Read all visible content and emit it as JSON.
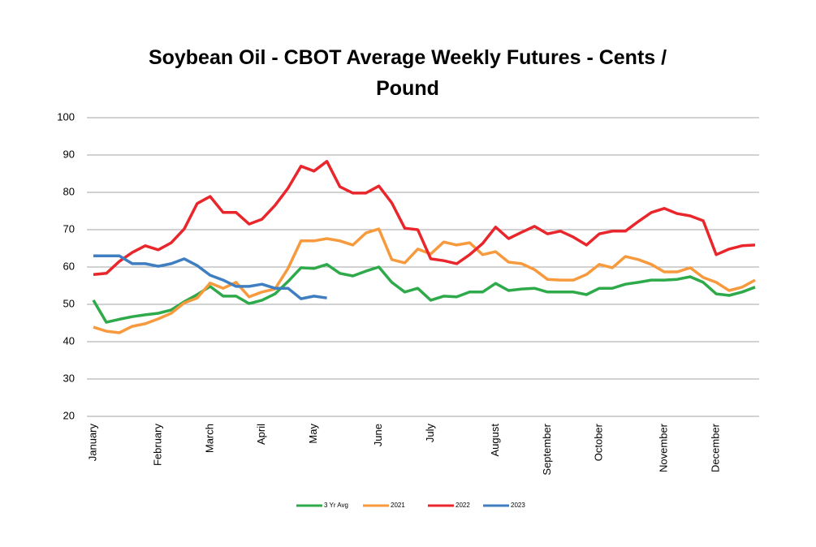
{
  "chart_data": {
    "type": "line",
    "title": "Soybean Oil - CBOT Average Weekly Futures - Cents / Pound",
    "categories": [
      "January",
      null,
      null,
      null,
      null,
      "February",
      null,
      null,
      null,
      "March",
      null,
      null,
      null,
      "April",
      null,
      null,
      null,
      "May",
      null,
      null,
      null,
      null,
      "June",
      null,
      null,
      null,
      "July",
      null,
      null,
      null,
      null,
      "August",
      null,
      null,
      null,
      "September",
      null,
      null,
      null,
      "October",
      null,
      null,
      null,
      null,
      "November",
      null,
      null,
      null,
      "December",
      null,
      null,
      null
    ],
    "series": [
      {
        "name": "3 Yr Avg",
        "color": "#2eaa4a",
        "values": [
          51.1,
          45.2,
          46,
          46.7,
          47.2,
          47.6,
          48.5,
          50.7,
          52.6,
          54.8,
          52.2,
          52.2,
          50.2,
          51.1,
          52.8,
          56.1,
          59.8,
          59.6,
          60.7,
          58.3,
          57.6,
          58.9,
          60,
          55.9,
          53.3,
          54.3,
          51.1,
          52.2,
          52,
          53.3,
          53.3,
          55.6,
          53.7,
          54.1,
          54.3,
          53.3,
          53.3,
          53.3,
          52.6,
          54.3,
          54.3,
          55.4,
          55.9,
          56.5,
          56.5,
          56.7,
          57.4,
          55.9,
          52.8,
          52.4,
          53.3,
          54.6
        ]
      },
      {
        "name": "2021",
        "color": "#f79a3e",
        "values": [
          43.9,
          42.8,
          42.4,
          44.1,
          44.8,
          46.1,
          47.6,
          50.4,
          51.7,
          55.7,
          54.3,
          55.9,
          52,
          53.3,
          54.1,
          59.6,
          67,
          67,
          67.6,
          67,
          65.9,
          69.1,
          70.2,
          62,
          61.1,
          64.8,
          63.5,
          66.7,
          65.9,
          66.5,
          63.3,
          64.1,
          61.3,
          60.9,
          59.3,
          56.7,
          56.5,
          56.5,
          58,
          60.7,
          59.8,
          62.8,
          62,
          60.7,
          58.7,
          58.7,
          59.8,
          57.2,
          55.9,
          53.7,
          54.6,
          56.5
        ]
      },
      {
        "name": "2022",
        "color": "#e8262b",
        "values": [
          58,
          58.3,
          61.5,
          63.9,
          65.7,
          64.6,
          66.5,
          70.2,
          77,
          78.9,
          74.6,
          74.6,
          71.5,
          72.8,
          76.5,
          81.1,
          87,
          85.7,
          88.3,
          81.5,
          79.8,
          79.8,
          81.7,
          77.2,
          70.4,
          70,
          62.2,
          61.7,
          60.9,
          63.3,
          66.3,
          70.7,
          67.6,
          69.3,
          70.9,
          68.9,
          69.6,
          68,
          65.9,
          68.9,
          69.6,
          69.6,
          72.2,
          74.6,
          75.7,
          74.3,
          73.7,
          72.4,
          63.3,
          64.8,
          65.7,
          65.9
        ]
      },
      {
        "name": "2023",
        "color": "#3f7fc1",
        "values": [
          63,
          63,
          63,
          60.9,
          60.9,
          60.2,
          60.9,
          62.2,
          60.4,
          57.8,
          56.5,
          54.8,
          54.8,
          55.4,
          54.3,
          54.3,
          51.5,
          52.2,
          51.7,
          null,
          null,
          null,
          null,
          null,
          null,
          null,
          null,
          null,
          null,
          null,
          null,
          null,
          null,
          null,
          null,
          null,
          null,
          null,
          null,
          null,
          null,
          null,
          null,
          null,
          null,
          null,
          null,
          null,
          null,
          null,
          null,
          null
        ]
      }
    ],
    "ylim": [
      20,
      100
    ],
    "yticks": [
      20,
      30,
      40,
      50,
      60,
      70,
      80,
      90,
      100
    ],
    "grid": true,
    "legend": "bottom"
  }
}
